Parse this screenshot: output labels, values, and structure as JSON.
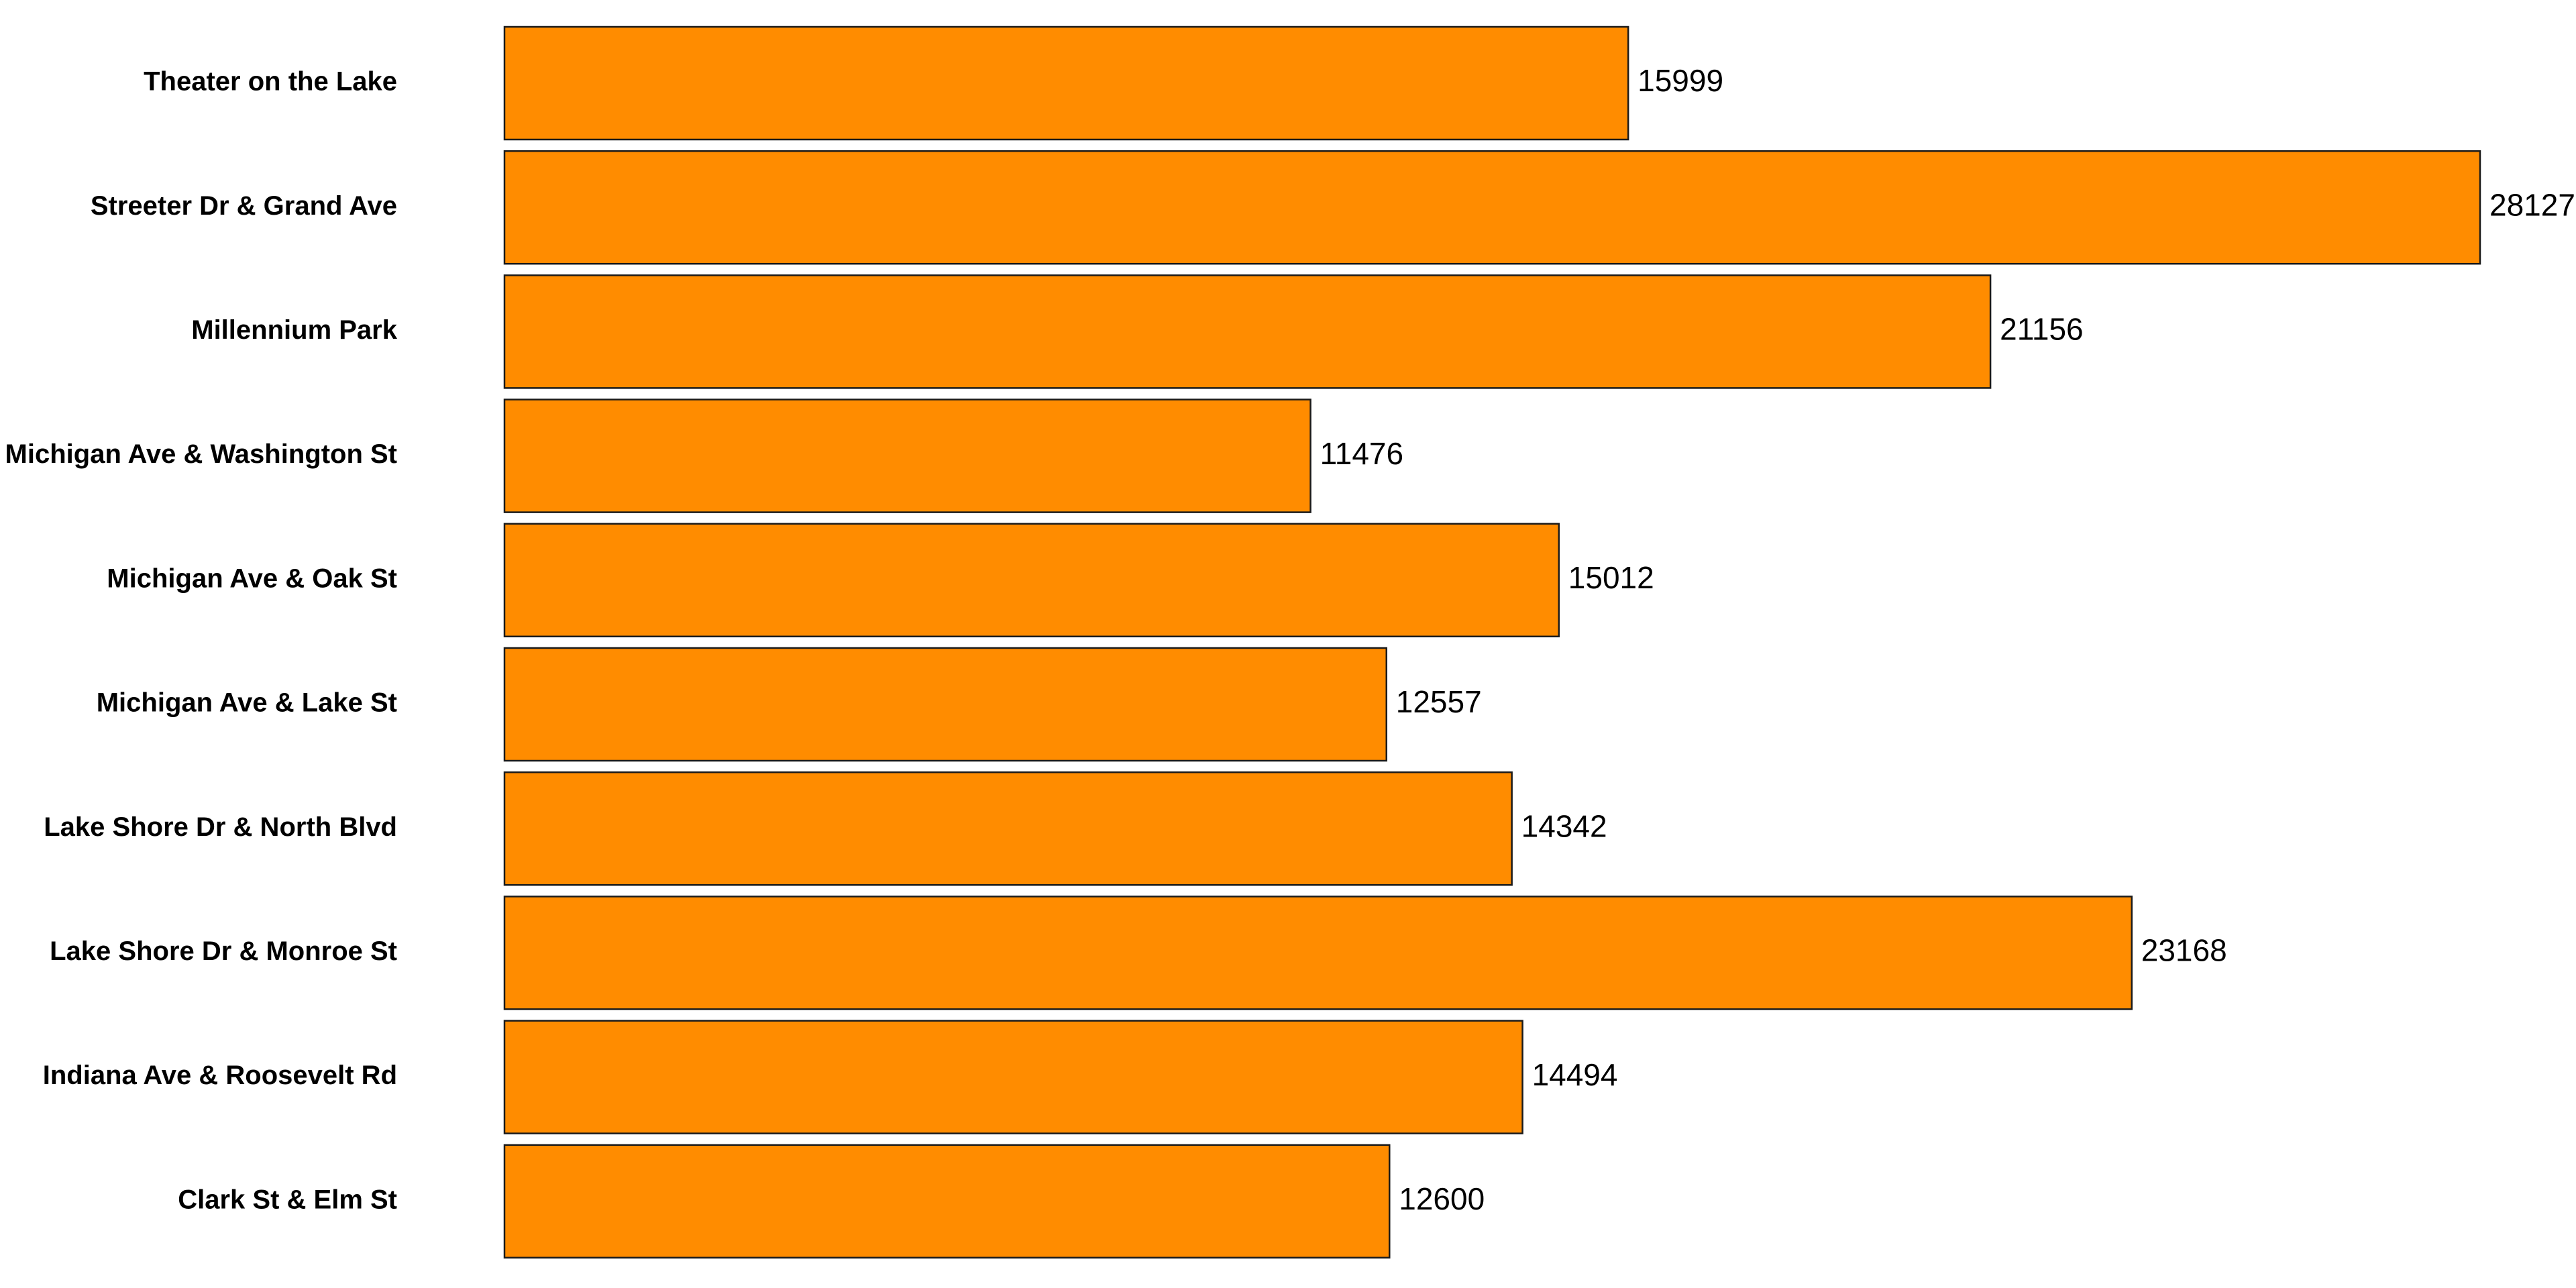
{
  "chart_data": {
    "type": "bar",
    "orientation": "horizontal",
    "categories": [
      "Theater on the Lake",
      "Streeter Dr & Grand Ave",
      "Millennium Park",
      "Michigan Ave & Washington St",
      "Michigan Ave & Oak St",
      "Michigan Ave & Lake St",
      "Lake Shore Dr & North Blvd",
      "Lake Shore Dr & Monroe St",
      "Indiana Ave & Roosevelt Rd",
      "Clark St & Elm St"
    ],
    "values": [
      15999,
      28127,
      21156,
      11476,
      15012,
      12557,
      14342,
      23168,
      14494,
      12600
    ],
    "data_labels": [
      "15999",
      "28127",
      "21156",
      "11476",
      "15012",
      "12557",
      "14342",
      "23168",
      "14494",
      "12600"
    ],
    "xlim": [
      0,
      28127
    ],
    "grid": false,
    "legend": "none",
    "colors": {
      "bar_fill": "#FF8C00",
      "bar_stroke": "#1A1A1A",
      "text": "#000000"
    }
  }
}
